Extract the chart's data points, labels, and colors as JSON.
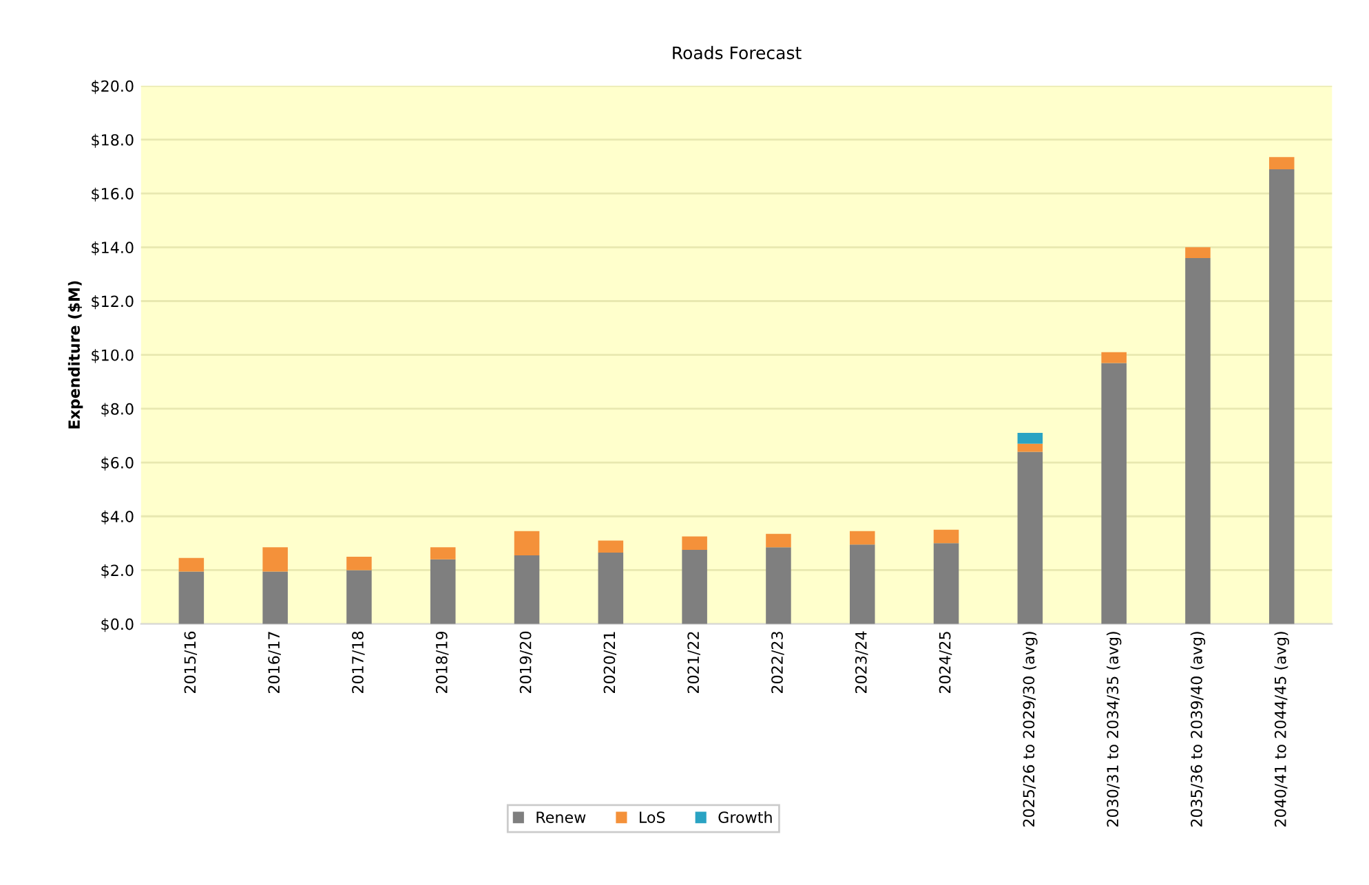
{
  "chart_data": {
    "type": "bar",
    "title": "Roads Forecast",
    "ylabel": "Expenditure ($M)",
    "stacked": true,
    "categories": [
      "2015/16",
      "2016/17",
      "2017/18",
      "2018/19",
      "2019/20",
      "2020/21",
      "2021/22",
      "2022/23",
      "2023/24",
      "2024/25",
      "2025/26 to 2029/30 (avg)",
      "2030/31 to 2034/35 (avg)",
      "2035/36 to 2039/40 (avg)",
      "2040/41 to 2044/45 (avg)"
    ],
    "series": [
      {
        "name": "Renew",
        "color": "#7f7f7f",
        "values": [
          1.95,
          1.95,
          2.0,
          2.4,
          2.55,
          2.65,
          2.75,
          2.85,
          2.95,
          3.0,
          6.4,
          9.7,
          13.6,
          16.9
        ]
      },
      {
        "name": "LoS",
        "color": "#f4913a",
        "values": [
          0.5,
          0.9,
          0.5,
          0.45,
          0.9,
          0.45,
          0.5,
          0.5,
          0.5,
          0.5,
          0.3,
          0.4,
          0.4,
          0.45
        ]
      },
      {
        "name": "Growth",
        "color": "#2aa3c3",
        "values": [
          null,
          null,
          null,
          null,
          null,
          null,
          null,
          null,
          null,
          null,
          0.4,
          null,
          null,
          null
        ]
      }
    ],
    "ylim": [
      0,
      20
    ],
    "yticks": [
      {
        "value": 0,
        "label": "$0.0"
      },
      {
        "value": 2,
        "label": "$2.0"
      },
      {
        "value": 4,
        "label": "$4.0"
      },
      {
        "value": 6,
        "label": "$6.0"
      },
      {
        "value": 8,
        "label": "$8.0"
      },
      {
        "value": 10,
        "label": "$10.0"
      },
      {
        "value": 12,
        "label": "$12.0"
      },
      {
        "value": 14,
        "label": "$14.0"
      },
      {
        "value": 16,
        "label": "$16.0"
      },
      {
        "value": 18,
        "label": "$18.0"
      },
      {
        "value": 20,
        "label": "$20.0"
      }
    ],
    "grid": "y",
    "legend": "bottom"
  }
}
